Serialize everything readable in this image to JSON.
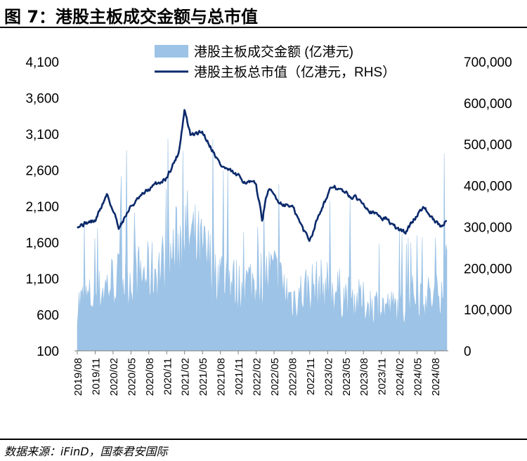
{
  "title": "图 7：港股主板成交金额与总市值",
  "source": "数据来源：iFinD，国泰君安国际",
  "colors": {
    "area": "#9dc3e6",
    "line": "#0c2a6b"
  },
  "chart_data": {
    "type": "area",
    "title": "",
    "series": [
      {
        "name": "港股主板成交金额 (亿港元)",
        "type": "area",
        "axis": "left",
        "x": [
          "2019/08",
          "2019/11",
          "2020/02",
          "2020/05",
          "2020/08",
          "2020/11",
          "2021/02",
          "2021/05",
          "2021/08",
          "2021/11",
          "2022/02",
          "2022/05",
          "2022/08",
          "2022/11",
          "2023/02",
          "2023/05",
          "2023/08",
          "2023/11",
          "2024/02",
          "2024/05",
          "2024/08",
          "2024/10"
        ],
        "values": [
          850,
          950,
          1200,
          1250,
          1300,
          1450,
          1950,
          1600,
          1300,
          1100,
          1200,
          1300,
          900,
          1100,
          1100,
          950,
          850,
          800,
          750,
          1000,
          900,
          1400
        ]
      },
      {
        "name": "港股主板总市值（亿港元，RHS）",
        "type": "line",
        "axis": "right",
        "x": [
          "2019/08",
          "2019/11",
          "2020/01",
          "2020/03",
          "2020/05",
          "2020/08",
          "2020/11",
          "2021/01",
          "2021/02",
          "2021/03",
          "2021/05",
          "2021/07",
          "2021/08",
          "2021/11",
          "2022/02",
          "2022/03",
          "2022/04",
          "2022/06",
          "2022/08",
          "2022/10",
          "2022/11",
          "2023/01",
          "2023/03",
          "2023/05",
          "2023/08",
          "2023/10",
          "2023/12",
          "2024/01",
          "2024/03",
          "2024/05",
          "2024/06",
          "2024/08",
          "2024/09",
          "2024/10"
        ],
        "values": [
          305000,
          315000,
          380000,
          300000,
          350000,
          390000,
          420000,
          480000,
          585000,
          520000,
          530000,
          480000,
          450000,
          420000,
          400000,
          320000,
          390000,
          360000,
          350000,
          290000,
          270000,
          350000,
          400000,
          380000,
          360000,
          330000,
          320000,
          300000,
          285000,
          330000,
          350000,
          310000,
          300000,
          320000
        ]
      }
    ],
    "left_axis": {
      "min": 100,
      "max": 4100,
      "ticks": [
        "100",
        "600",
        "1,100",
        "1,600",
        "2,100",
        "2,600",
        "3,100",
        "3,600",
        "4,100"
      ]
    },
    "right_axis": {
      "min": 0,
      "max": 700000,
      "ticks": [
        "0",
        "100,000",
        "200,000",
        "300,000",
        "400,000",
        "500,000",
        "600,000",
        "700,000"
      ]
    },
    "x_ticks": [
      "2019/08",
      "2019/11",
      "2020/02",
      "2020/05",
      "2020/08",
      "2020/11",
      "2021/02",
      "2021/05",
      "2021/08",
      "2021/11",
      "2022/02",
      "2022/05",
      "2022/08",
      "2022/11",
      "2023/02",
      "2023/05",
      "2023/08",
      "2023/11",
      "2024/02",
      "2024/05",
      "2024/08"
    ],
    "x_range": [
      "2019/08",
      "2024/10"
    ],
    "legend_position": "top-center",
    "grid": false
  }
}
